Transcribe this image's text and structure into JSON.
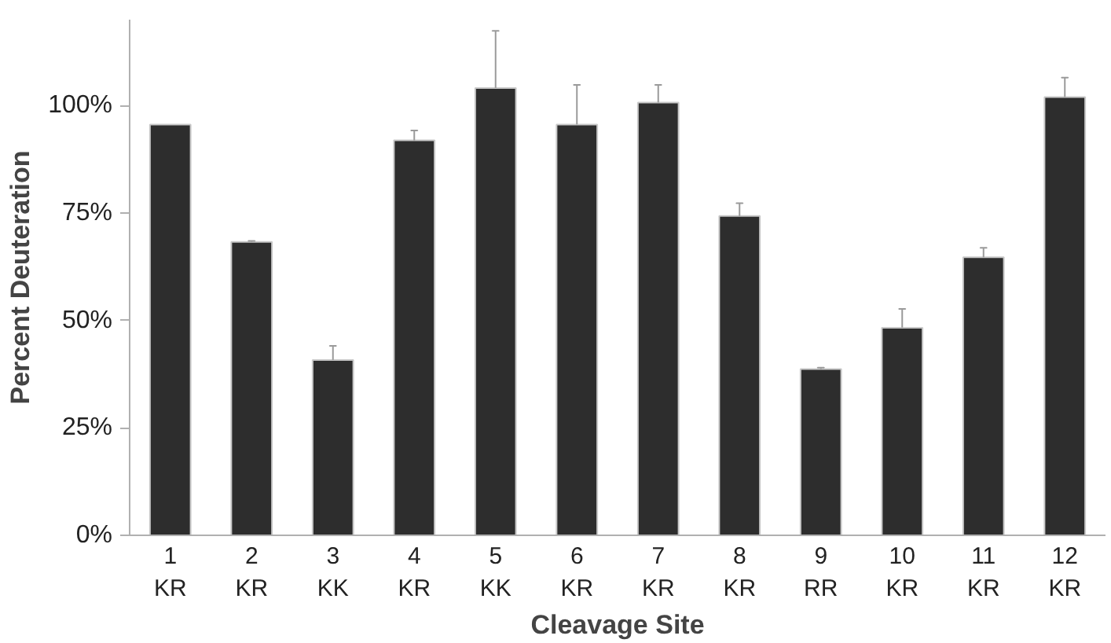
{
  "chart_data": {
    "type": "bar",
    "xlabel": "Cleavage Site",
    "ylabel": "Percent Deuteration",
    "categories": [
      "1\nKR",
      "2\nKR",
      "3\nKK",
      "4\nKR",
      "5\nKK",
      "6\nKR",
      "7\nKR",
      "8\nKR",
      "9\nRR",
      "10\nKR",
      "11\nKR",
      "12\nKR"
    ],
    "values": [
      95.6,
      68.3,
      40.8,
      91.9,
      104.1,
      95.6,
      100.7,
      74.3,
      38.7,
      48.3,
      64.7,
      102.0
    ],
    "errors": [
      null,
      [
        68.3,
        68.5
      ],
      [
        40.8,
        44.1
      ],
      [
        91.9,
        94.2
      ],
      [
        104.1,
        117.4
      ],
      [
        95.6,
        104.8
      ],
      [
        100.7,
        104.8
      ],
      [
        74.3,
        77.3
      ],
      [
        38.7,
        39.0
      ],
      [
        48.3,
        52.7
      ],
      [
        64.7,
        66.9
      ],
      [
        102.0,
        106.5
      ]
    ],
    "color": "#2d2d2d",
    "ylim": [
      0,
      120
    ],
    "yticks": [
      {
        "value": 0,
        "label": "0%"
      },
      {
        "value": 25,
        "label": "25%"
      },
      {
        "value": 50,
        "label": "50%"
      },
      {
        "value": 75,
        "label": "75%"
      },
      {
        "value": 100,
        "label": "100%"
      }
    ],
    "grid": false
  }
}
